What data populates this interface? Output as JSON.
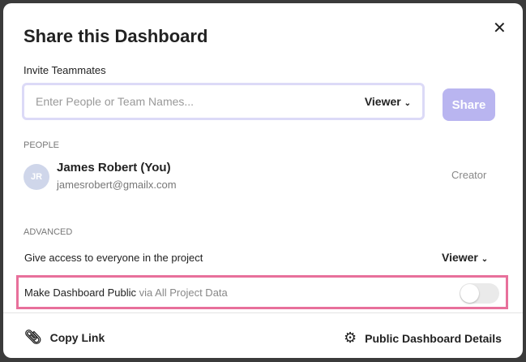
{
  "dialog": {
    "title": "Share this Dashboard",
    "close_icon": "close-icon"
  },
  "invite": {
    "label": "Invite Teammates",
    "placeholder": "Enter People or Team Names...",
    "role": "Viewer",
    "share_label": "Share"
  },
  "people": {
    "heading": "PEOPLE",
    "items": [
      {
        "initials": "JR",
        "name": "James Robert (You)",
        "email": "jamesrobert@gmailx.com",
        "role": "Creator"
      }
    ]
  },
  "advanced": {
    "heading": "ADVANCED",
    "project_access_label": "Give access to everyone in the project",
    "project_access_role": "Viewer",
    "public_label": "Make Dashboard Public",
    "public_sub": "via All Project Data",
    "public_enabled": false,
    "highlight_color": "#e8709b"
  },
  "footer": {
    "copy_link": "Copy Link",
    "details": "Public Dashboard Details"
  },
  "colors": {
    "accent": "#b9b5f0"
  }
}
